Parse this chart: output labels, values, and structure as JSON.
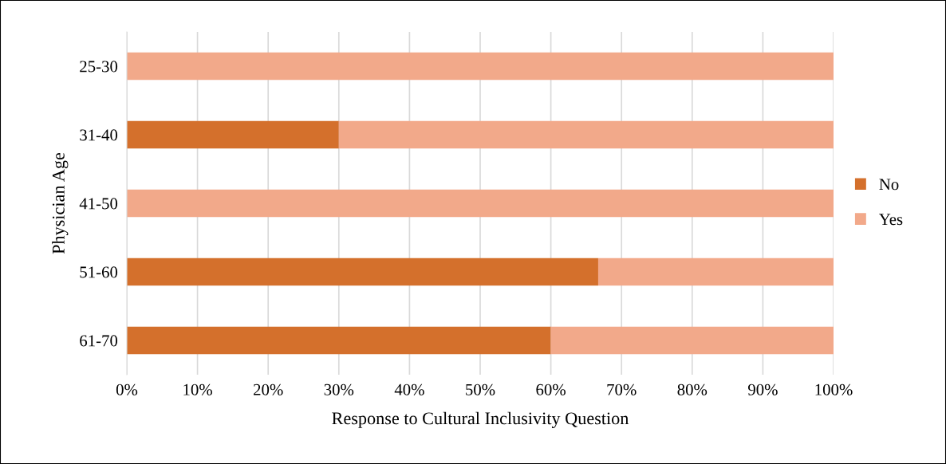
{
  "chart_data": {
    "type": "bar",
    "orientation": "horizontal",
    "stacked": true,
    "xlabel": "Response to Cultural Inclusivity Question",
    "ylabel": "Physician Age",
    "categories": [
      "25-30",
      "31-40",
      "41-50",
      "51-60",
      "61-70"
    ],
    "series": [
      {
        "name": "No",
        "color": "#d4702c",
        "values": [
          0,
          30,
          0,
          66.7,
          60
        ]
      },
      {
        "name": "Yes",
        "color": "#f2a98a",
        "values": [
          100,
          70,
          100,
          33.3,
          40
        ]
      }
    ],
    "xlim": [
      0,
      100
    ],
    "xticks": [
      {
        "value": 0,
        "label": "0%"
      },
      {
        "value": 10,
        "label": "10%"
      },
      {
        "value": 20,
        "label": "20%"
      },
      {
        "value": 30,
        "label": "30%"
      },
      {
        "value": 40,
        "label": "40%"
      },
      {
        "value": 50,
        "label": "50%"
      },
      {
        "value": 60,
        "label": "60%"
      },
      {
        "value": 70,
        "label": "70%"
      },
      {
        "value": 80,
        "label": "80%"
      },
      {
        "value": 90,
        "label": "90%"
      },
      {
        "value": 100,
        "label": "100%"
      }
    ],
    "grid": "x",
    "legend": "right"
  }
}
